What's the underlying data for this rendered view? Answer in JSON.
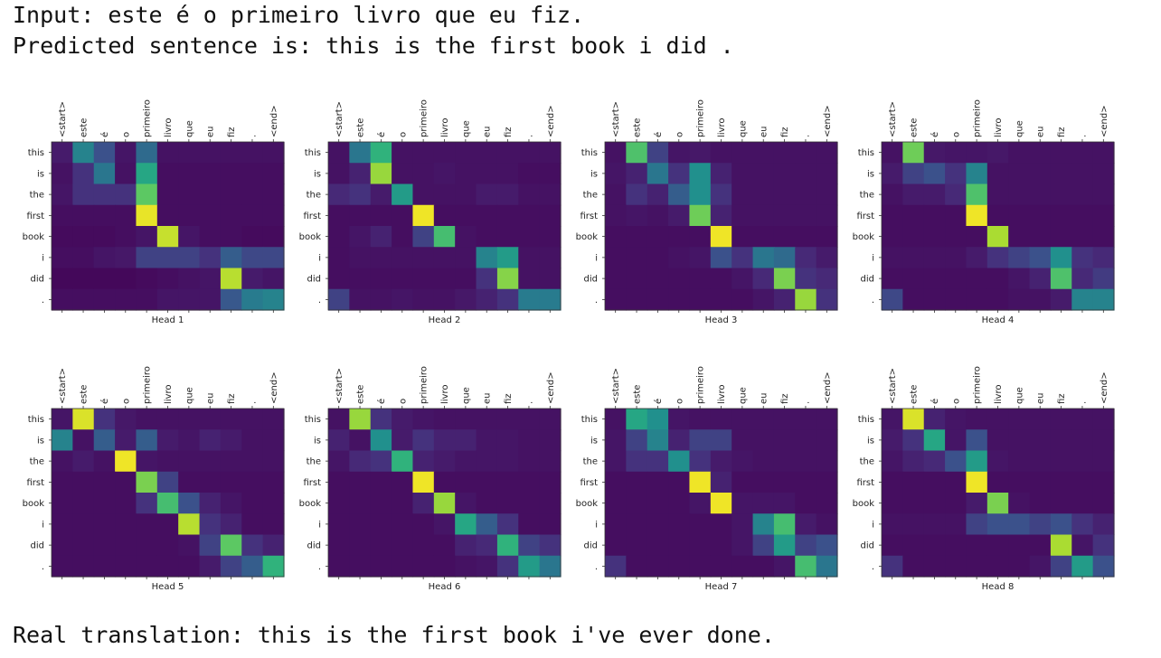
{
  "output": {
    "input_line": "Input: este é o primeiro livro que eu fiz.",
    "predicted_line": "Predicted sentence is: this is the first book i did .",
    "real_line": "Real translation: this is the first book i've ever done."
  },
  "chart_data": {
    "type": "heatmap",
    "colormap": "viridis",
    "value_range": [
      0,
      1
    ],
    "x_tokens": [
      "<start>",
      "este",
      "é",
      "o",
      "primeiro",
      "livro",
      "que",
      "eu",
      "fiz",
      ".",
      "<end>"
    ],
    "y_tokens": [
      "this",
      "is",
      "the",
      "first",
      "book",
      "i",
      "did",
      "."
    ],
    "heads": [
      {
        "label": "Head 1",
        "matrix": [
          [
            0.08,
            0.45,
            0.25,
            0.06,
            0.35,
            0.05,
            0.05,
            0.05,
            0.05,
            0.05,
            0.05
          ],
          [
            0.05,
            0.15,
            0.4,
            0.05,
            0.6,
            0.04,
            0.04,
            0.04,
            0.04,
            0.04,
            0.04
          ],
          [
            0.06,
            0.15,
            0.15,
            0.15,
            0.75,
            0.04,
            0.04,
            0.04,
            0.04,
            0.04,
            0.04
          ],
          [
            0.04,
            0.04,
            0.04,
            0.04,
            0.97,
            0.04,
            0.04,
            0.04,
            0.04,
            0.04,
            0.04
          ],
          [
            0.03,
            0.03,
            0.03,
            0.04,
            0.06,
            0.92,
            0.06,
            0.04,
            0.04,
            0.03,
            0.03
          ],
          [
            0.04,
            0.04,
            0.06,
            0.07,
            0.2,
            0.2,
            0.2,
            0.15,
            0.3,
            0.22,
            0.22
          ],
          [
            0.02,
            0.02,
            0.02,
            0.02,
            0.03,
            0.04,
            0.05,
            0.06,
            0.9,
            0.08,
            0.06
          ],
          [
            0.04,
            0.04,
            0.04,
            0.04,
            0.04,
            0.06,
            0.06,
            0.06,
            0.28,
            0.42,
            0.45
          ]
        ]
      },
      {
        "label": "Head 2",
        "matrix": [
          [
            0.05,
            0.4,
            0.65,
            0.05,
            0.05,
            0.05,
            0.05,
            0.05,
            0.05,
            0.05,
            0.05
          ],
          [
            0.05,
            0.1,
            0.85,
            0.05,
            0.05,
            0.06,
            0.05,
            0.05,
            0.05,
            0.04,
            0.04
          ],
          [
            0.12,
            0.15,
            0.08,
            0.55,
            0.05,
            0.05,
            0.05,
            0.08,
            0.08,
            0.05,
            0.05
          ],
          [
            0.04,
            0.04,
            0.04,
            0.04,
            0.98,
            0.04,
            0.04,
            0.04,
            0.04,
            0.04,
            0.04
          ],
          [
            0.04,
            0.06,
            0.1,
            0.04,
            0.2,
            0.7,
            0.05,
            0.04,
            0.04,
            0.04,
            0.04
          ],
          [
            0.04,
            0.05,
            0.05,
            0.05,
            0.05,
            0.05,
            0.05,
            0.45,
            0.55,
            0.05,
            0.05
          ],
          [
            0.04,
            0.04,
            0.04,
            0.04,
            0.04,
            0.04,
            0.04,
            0.15,
            0.82,
            0.05,
            0.05
          ],
          [
            0.2,
            0.05,
            0.05,
            0.06,
            0.05,
            0.05,
            0.07,
            0.1,
            0.15,
            0.42,
            0.42
          ]
        ]
      },
      {
        "label": "Head 3",
        "matrix": [
          [
            0.05,
            0.72,
            0.2,
            0.06,
            0.07,
            0.05,
            0.05,
            0.05,
            0.05,
            0.05,
            0.05
          ],
          [
            0.06,
            0.1,
            0.4,
            0.15,
            0.5,
            0.1,
            0.05,
            0.05,
            0.05,
            0.05,
            0.05
          ],
          [
            0.05,
            0.15,
            0.1,
            0.3,
            0.5,
            0.15,
            0.05,
            0.05,
            0.05,
            0.05,
            0.05
          ],
          [
            0.05,
            0.06,
            0.05,
            0.08,
            0.78,
            0.1,
            0.05,
            0.05,
            0.05,
            0.05,
            0.05
          ],
          [
            0.04,
            0.04,
            0.04,
            0.04,
            0.04,
            0.98,
            0.04,
            0.04,
            0.04,
            0.04,
            0.04
          ],
          [
            0.04,
            0.04,
            0.04,
            0.05,
            0.06,
            0.25,
            0.15,
            0.4,
            0.35,
            0.12,
            0.08
          ],
          [
            0.04,
            0.04,
            0.04,
            0.04,
            0.04,
            0.04,
            0.06,
            0.12,
            0.8,
            0.15,
            0.12
          ],
          [
            0.04,
            0.04,
            0.04,
            0.04,
            0.04,
            0.04,
            0.04,
            0.06,
            0.1,
            0.85,
            0.15
          ]
        ]
      },
      {
        "label": "Head 4",
        "matrix": [
          [
            0.05,
            0.78,
            0.07,
            0.06,
            0.06,
            0.07,
            0.05,
            0.05,
            0.05,
            0.05,
            0.05
          ],
          [
            0.08,
            0.2,
            0.25,
            0.15,
            0.45,
            0.05,
            0.05,
            0.05,
            0.05,
            0.05,
            0.05
          ],
          [
            0.05,
            0.08,
            0.08,
            0.12,
            0.72,
            0.05,
            0.05,
            0.05,
            0.05,
            0.05,
            0.05
          ],
          [
            0.04,
            0.04,
            0.04,
            0.04,
            0.98,
            0.04,
            0.04,
            0.04,
            0.04,
            0.04,
            0.04
          ],
          [
            0.04,
            0.04,
            0.04,
            0.04,
            0.04,
            0.88,
            0.04,
            0.04,
            0.04,
            0.04,
            0.04
          ],
          [
            0.05,
            0.05,
            0.05,
            0.05,
            0.08,
            0.15,
            0.2,
            0.25,
            0.5,
            0.15,
            0.12
          ],
          [
            0.04,
            0.04,
            0.04,
            0.04,
            0.04,
            0.04,
            0.06,
            0.1,
            0.72,
            0.12,
            0.18
          ],
          [
            0.22,
            0.04,
            0.04,
            0.04,
            0.04,
            0.04,
            0.05,
            0.05,
            0.08,
            0.45,
            0.45
          ]
        ]
      },
      {
        "label": "Head 5",
        "matrix": [
          [
            0.06,
            0.95,
            0.15,
            0.07,
            0.05,
            0.05,
            0.05,
            0.05,
            0.05,
            0.05,
            0.05
          ],
          [
            0.45,
            0.05,
            0.3,
            0.08,
            0.3,
            0.08,
            0.06,
            0.1,
            0.08,
            0.05,
            0.05
          ],
          [
            0.05,
            0.08,
            0.05,
            0.98,
            0.06,
            0.05,
            0.05,
            0.05,
            0.05,
            0.05,
            0.05
          ],
          [
            0.04,
            0.04,
            0.04,
            0.04,
            0.8,
            0.2,
            0.04,
            0.04,
            0.04,
            0.04,
            0.04
          ],
          [
            0.04,
            0.04,
            0.04,
            0.04,
            0.15,
            0.7,
            0.25,
            0.1,
            0.06,
            0.04,
            0.04
          ],
          [
            0.04,
            0.04,
            0.04,
            0.04,
            0.04,
            0.04,
            0.9,
            0.15,
            0.1,
            0.04,
            0.04
          ],
          [
            0.04,
            0.04,
            0.04,
            0.04,
            0.04,
            0.04,
            0.05,
            0.2,
            0.75,
            0.15,
            0.1
          ],
          [
            0.04,
            0.04,
            0.04,
            0.04,
            0.04,
            0.04,
            0.04,
            0.08,
            0.2,
            0.3,
            0.65
          ]
        ]
      },
      {
        "label": "Head 6",
        "matrix": [
          [
            0.05,
            0.85,
            0.15,
            0.08,
            0.06,
            0.05,
            0.05,
            0.05,
            0.05,
            0.05,
            0.05
          ],
          [
            0.1,
            0.05,
            0.5,
            0.08,
            0.15,
            0.1,
            0.1,
            0.06,
            0.06,
            0.05,
            0.05
          ],
          [
            0.06,
            0.12,
            0.15,
            0.65,
            0.1,
            0.08,
            0.06,
            0.06,
            0.06,
            0.05,
            0.05
          ],
          [
            0.04,
            0.04,
            0.04,
            0.04,
            0.98,
            0.04,
            0.04,
            0.04,
            0.04,
            0.04,
            0.04
          ],
          [
            0.04,
            0.04,
            0.04,
            0.04,
            0.1,
            0.85,
            0.06,
            0.04,
            0.04,
            0.04,
            0.04
          ],
          [
            0.04,
            0.04,
            0.04,
            0.04,
            0.04,
            0.06,
            0.6,
            0.3,
            0.15,
            0.04,
            0.04
          ],
          [
            0.04,
            0.04,
            0.04,
            0.04,
            0.04,
            0.04,
            0.1,
            0.12,
            0.65,
            0.2,
            0.15
          ],
          [
            0.04,
            0.04,
            0.04,
            0.04,
            0.04,
            0.04,
            0.05,
            0.06,
            0.15,
            0.55,
            0.4
          ]
        ]
      },
      {
        "label": "Head 7",
        "matrix": [
          [
            0.05,
            0.6,
            0.5,
            0.06,
            0.05,
            0.05,
            0.05,
            0.05,
            0.05,
            0.05,
            0.05
          ],
          [
            0.06,
            0.2,
            0.45,
            0.1,
            0.2,
            0.2,
            0.05,
            0.05,
            0.05,
            0.05,
            0.05
          ],
          [
            0.06,
            0.15,
            0.15,
            0.5,
            0.15,
            0.08,
            0.06,
            0.05,
            0.05,
            0.05,
            0.05
          ],
          [
            0.04,
            0.04,
            0.04,
            0.04,
            0.98,
            0.1,
            0.04,
            0.04,
            0.04,
            0.04,
            0.04
          ],
          [
            0.04,
            0.04,
            0.04,
            0.04,
            0.06,
            0.98,
            0.06,
            0.06,
            0.06,
            0.04,
            0.04
          ],
          [
            0.04,
            0.04,
            0.04,
            0.04,
            0.04,
            0.04,
            0.06,
            0.45,
            0.7,
            0.08,
            0.05
          ],
          [
            0.04,
            0.04,
            0.04,
            0.04,
            0.04,
            0.04,
            0.06,
            0.2,
            0.55,
            0.2,
            0.25
          ],
          [
            0.15,
            0.04,
            0.04,
            0.04,
            0.04,
            0.04,
            0.04,
            0.04,
            0.06,
            0.7,
            0.4
          ]
        ]
      },
      {
        "label": "Head 8",
        "matrix": [
          [
            0.06,
            0.95,
            0.1,
            0.06,
            0.05,
            0.05,
            0.05,
            0.05,
            0.05,
            0.05,
            0.05
          ],
          [
            0.08,
            0.15,
            0.6,
            0.06,
            0.25,
            0.05,
            0.05,
            0.05,
            0.05,
            0.05,
            0.05
          ],
          [
            0.06,
            0.1,
            0.12,
            0.25,
            0.55,
            0.06,
            0.05,
            0.05,
            0.05,
            0.05,
            0.05
          ],
          [
            0.04,
            0.04,
            0.04,
            0.04,
            0.98,
            0.04,
            0.04,
            0.04,
            0.04,
            0.04,
            0.04
          ],
          [
            0.04,
            0.04,
            0.04,
            0.04,
            0.08,
            0.8,
            0.05,
            0.04,
            0.04,
            0.04,
            0.04
          ],
          [
            0.05,
            0.05,
            0.05,
            0.05,
            0.2,
            0.25,
            0.25,
            0.2,
            0.25,
            0.15,
            0.1
          ],
          [
            0.04,
            0.04,
            0.04,
            0.04,
            0.04,
            0.04,
            0.04,
            0.04,
            0.88,
            0.06,
            0.15
          ],
          [
            0.15,
            0.04,
            0.04,
            0.04,
            0.04,
            0.04,
            0.04,
            0.06,
            0.2,
            0.55,
            0.25
          ]
        ]
      }
    ]
  }
}
